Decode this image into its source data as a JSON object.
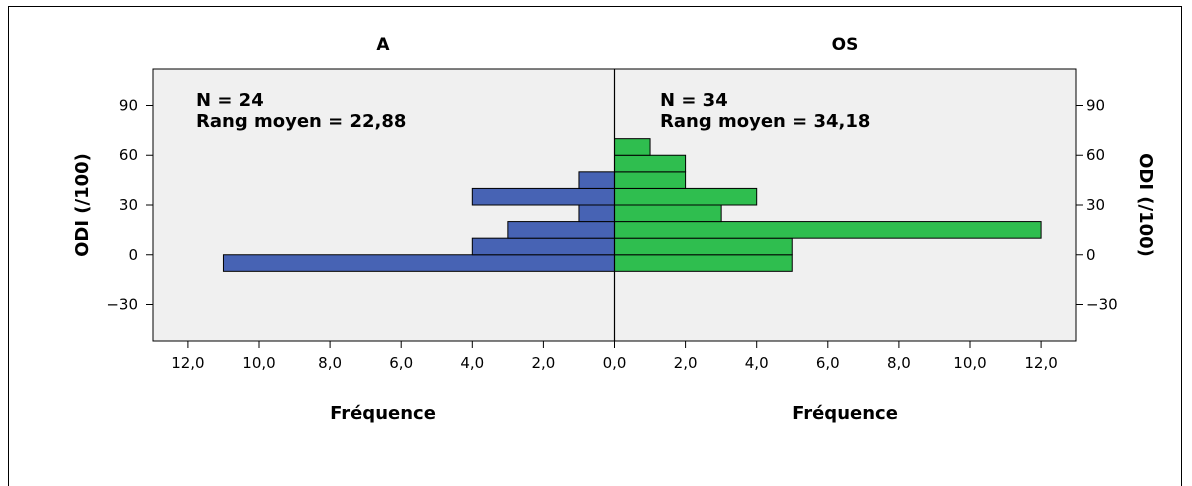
{
  "chart_data": {
    "type": "bar",
    "orientation": "population-pyramid",
    "y_axis_label": "ODI (/100)",
    "x_axis_label": "Fréquence",
    "ylim": [
      -52,
      112
    ],
    "y_ticks": [
      -30,
      0,
      30,
      60,
      90
    ],
    "x_tick_labels": [
      "12,0",
      "10,0",
      "8,0",
      "6,0",
      "4,0",
      "2,0",
      "0,0",
      "2,0",
      "4,0",
      "6,0",
      "8,0",
      "10,0",
      "12,0"
    ],
    "xlim": [
      0,
      13
    ],
    "bin_width": 10,
    "bin_starts": [
      -10,
      0,
      10,
      20,
      30,
      40,
      50,
      60,
      70
    ],
    "panels": [
      {
        "title": "A",
        "n_text": "N = 24",
        "rank_text": "Rang moyen = 22,88",
        "color": "#4763b4",
        "frequencies": [
          11,
          4,
          3,
          1,
          4,
          1,
          0,
          0,
          0
        ]
      },
      {
        "title": "OS",
        "n_text": "N = 34",
        "rank_text": "Rang moyen = 34,18",
        "color": "#2fbe4f",
        "frequencies": [
          5,
          5,
          12,
          3,
          4,
          2,
          2,
          1,
          0
        ]
      }
    ]
  }
}
